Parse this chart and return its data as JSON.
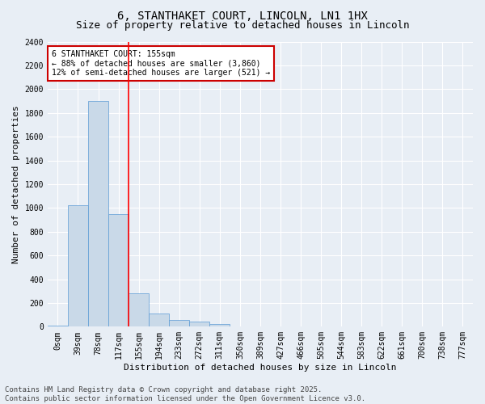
{
  "title_line1": "6, STANTHAKET COURT, LINCOLN, LN1 1HX",
  "title_line2": "Size of property relative to detached houses in Lincoln",
  "xlabel": "Distribution of detached houses by size in Lincoln",
  "ylabel": "Number of detached properties",
  "categories": [
    "0sqm",
    "39sqm",
    "78sqm",
    "117sqm",
    "155sqm",
    "194sqm",
    "233sqm",
    "272sqm",
    "311sqm",
    "350sqm",
    "389sqm",
    "427sqm",
    "466sqm",
    "505sqm",
    "544sqm",
    "583sqm",
    "622sqm",
    "661sqm",
    "700sqm",
    "738sqm",
    "777sqm"
  ],
  "values": [
    10,
    1020,
    1900,
    950,
    280,
    110,
    55,
    40,
    20,
    5,
    0,
    0,
    0,
    0,
    0,
    0,
    0,
    0,
    0,
    0,
    0
  ],
  "bar_color": "#c9d9e8",
  "bar_edge_color": "#5b9bd5",
  "red_line_index": 4,
  "ylim": [
    0,
    2400
  ],
  "yticks": [
    0,
    200,
    400,
    600,
    800,
    1000,
    1200,
    1400,
    1600,
    1800,
    2000,
    2200,
    2400
  ],
  "annotation_text": "6 STANTHAKET COURT: 155sqm\n← 88% of detached houses are smaller (3,860)\n12% of semi-detached houses are larger (521) →",
  "annotation_box_facecolor": "#ffffff",
  "annotation_box_edgecolor": "#cc0000",
  "footnote": "Contains HM Land Registry data © Crown copyright and database right 2025.\nContains public sector information licensed under the Open Government Licence v3.0.",
  "background_color": "#e8eef5",
  "grid_color": "#ffffff",
  "title_fontsize": 10,
  "subtitle_fontsize": 9,
  "axis_label_fontsize": 8,
  "tick_fontsize": 7,
  "annotation_fontsize": 7,
  "footnote_fontsize": 6.5
}
